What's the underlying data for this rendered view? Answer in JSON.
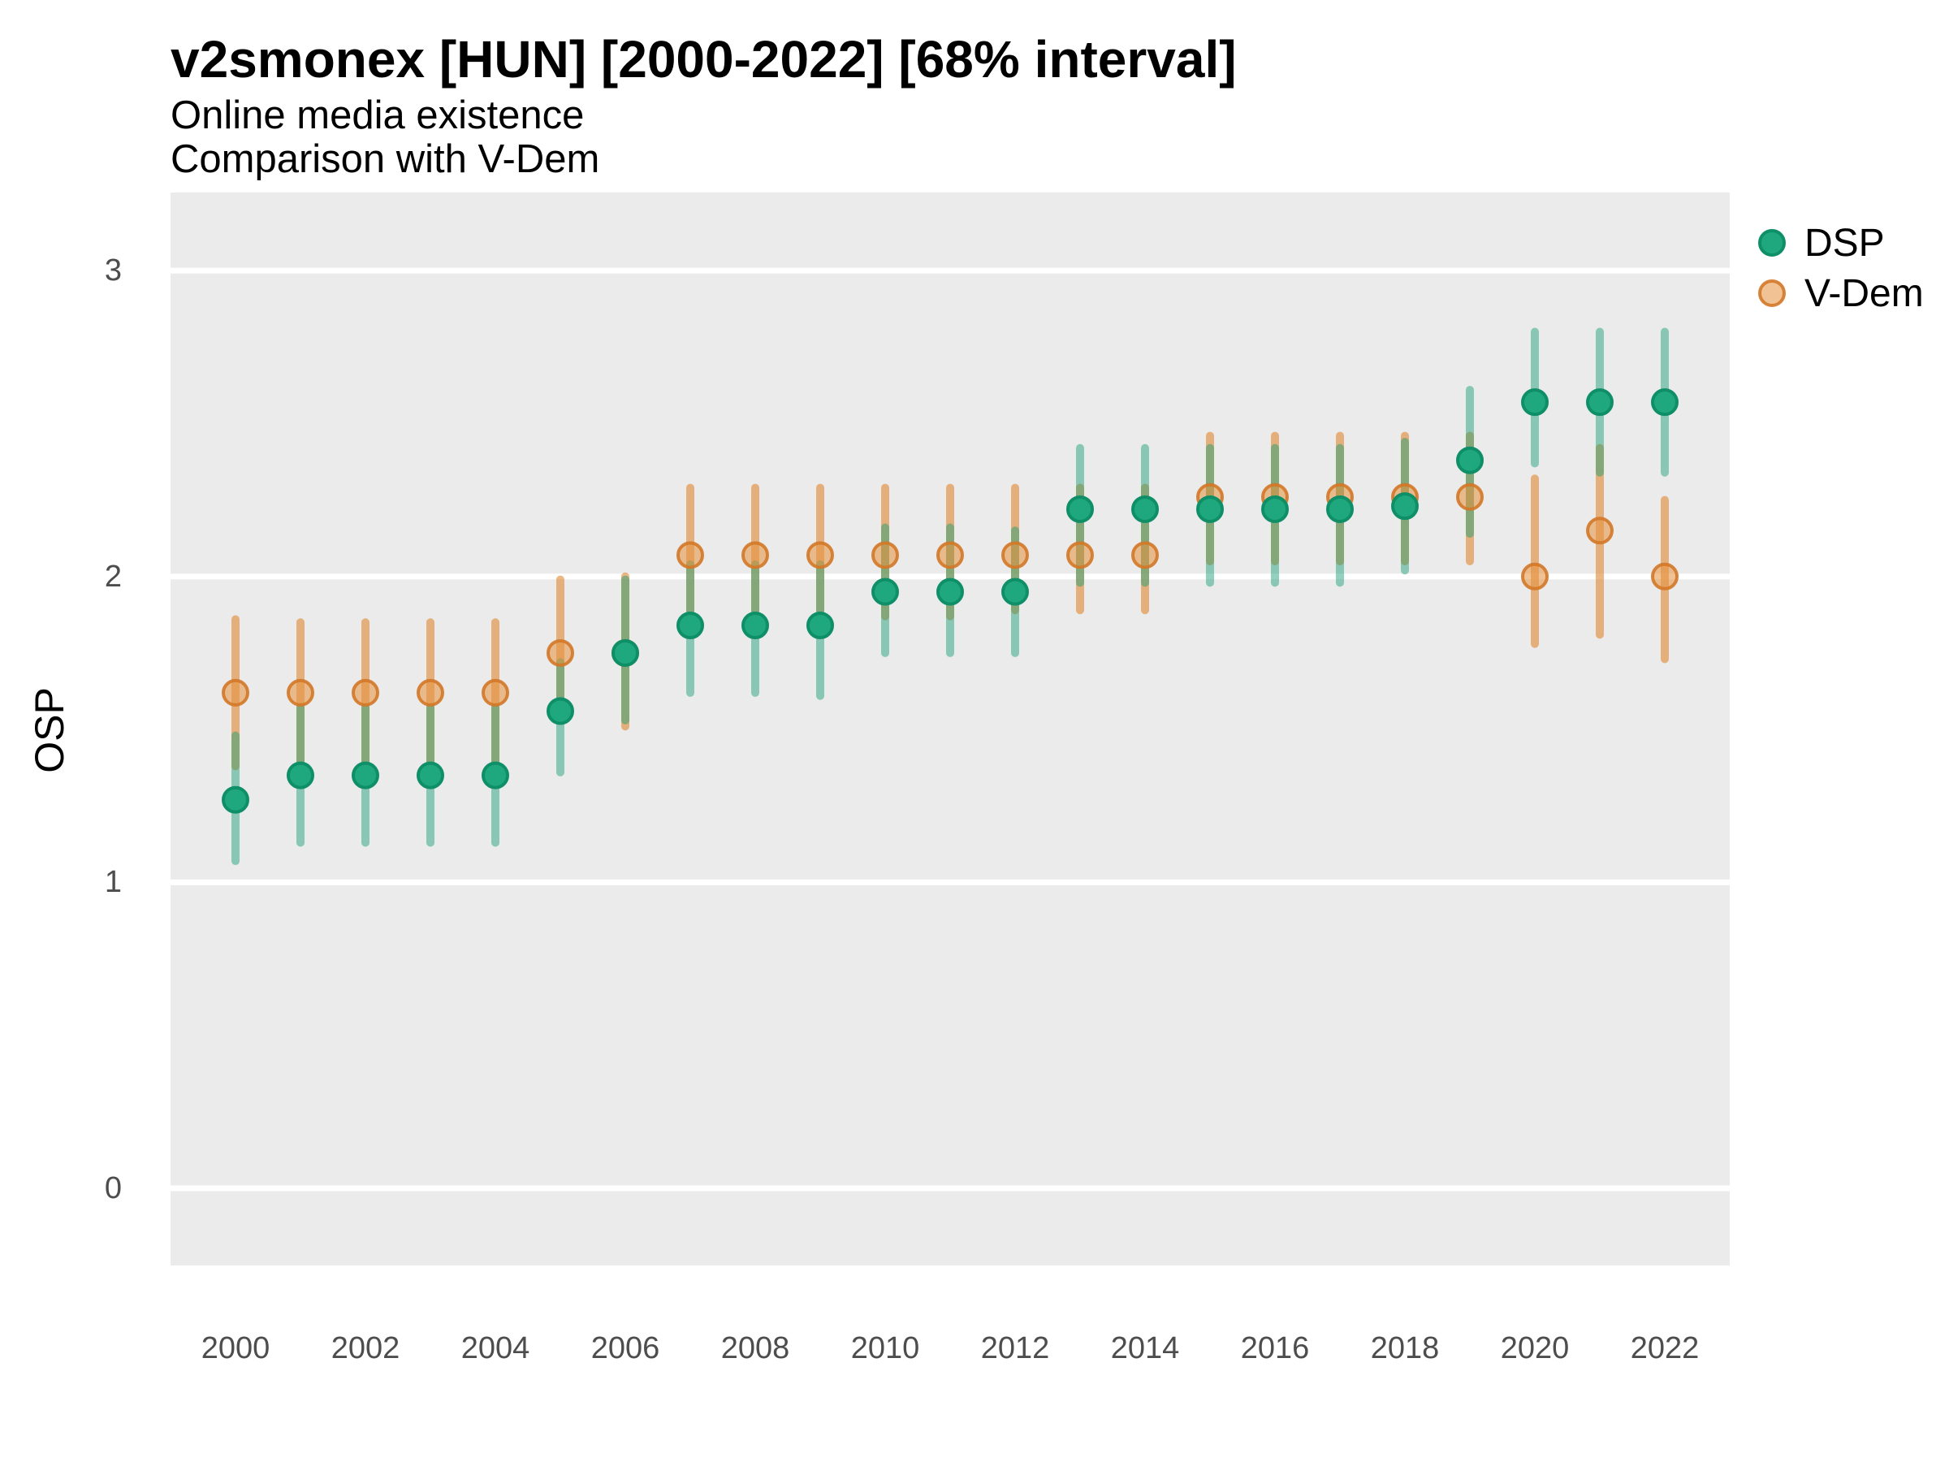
{
  "title": "v2smonex [HUN] [2000-2022] [68% interval]",
  "subtitle_line1": "Online media existence",
  "subtitle_line2": "Comparison with V-Dem",
  "y_axis": {
    "label": "OSP",
    "tick_labels": [
      "3",
      "2",
      "1",
      "0"
    ],
    "tick_values": [
      3,
      2,
      1,
      0
    ]
  },
  "x_axis": {
    "tick_labels": [
      "2000",
      "2002",
      "2004",
      "2006",
      "2008",
      "2010",
      "2012",
      "2014",
      "2016",
      "2018",
      "2020",
      "2022"
    ],
    "tick_years": [
      2000,
      2002,
      2004,
      2006,
      2008,
      2010,
      2012,
      2014,
      2016,
      2018,
      2020,
      2022
    ]
  },
  "legend": {
    "items": [
      {
        "label": "DSP",
        "series": "DSP"
      },
      {
        "label": "V-Dem",
        "series": "V-Dem"
      }
    ]
  },
  "colors": {
    "panel_background": "#EBEBEB",
    "gridline": "#FFFFFF",
    "dsp_dot_fill": "#1FA87E",
    "dsp_dot_stroke": "#0F8F68",
    "dsp_interval": "rgba(27,158,119,0.48)",
    "vdem_dot_fill": "rgba(230,145,60,0.55)",
    "vdem_dot_stroke": "rgba(211,120,40,0.9)",
    "vdem_interval": "rgba(224,138,53,0.62)"
  },
  "chart_data": {
    "type": "pointrange",
    "title": "v2smonex [HUN] [2000-2022] [68% interval]",
    "subtitle": [
      "Online media existence",
      "Comparison with V-Dem"
    ],
    "xlabel": "",
    "ylabel": "OSP",
    "interval": "68%",
    "ylim": [
      -0.25,
      3.26
    ],
    "y_gridlines": [
      0,
      1,
      2,
      3
    ],
    "grid": "white major gridlines on gray panel",
    "legend_position": "right",
    "x": [
      2000,
      2001,
      2002,
      2003,
      2004,
      2005,
      2006,
      2007,
      2008,
      2009,
      2010,
      2011,
      2012,
      2013,
      2014,
      2015,
      2016,
      2017,
      2018,
      2019,
      2020,
      2021,
      2022
    ],
    "series": [
      {
        "name": "DSP",
        "est": [
          1.27,
          1.35,
          1.35,
          1.35,
          1.35,
          1.56,
          1.75,
          1.84,
          1.84,
          1.84,
          1.95,
          1.95,
          1.95,
          2.22,
          2.22,
          2.22,
          2.22,
          2.22,
          2.23,
          2.38,
          2.57,
          2.57,
          2.57
        ],
        "lo": [
          1.07,
          1.13,
          1.13,
          1.13,
          1.13,
          1.36,
          1.53,
          1.62,
          1.62,
          1.61,
          1.75,
          1.75,
          1.75,
          1.98,
          1.98,
          1.98,
          1.98,
          1.98,
          2.02,
          2.14,
          2.37,
          2.34,
          2.34
        ],
        "hi": [
          1.48,
          1.57,
          1.57,
          1.57,
          1.57,
          1.72,
          1.99,
          2.04,
          2.04,
          2.04,
          2.16,
          2.16,
          2.15,
          2.42,
          2.42,
          2.42,
          2.42,
          2.42,
          2.44,
          2.61,
          2.8,
          2.8,
          2.8
        ]
      },
      {
        "name": "V-Dem",
        "est": [
          1.62,
          1.62,
          1.62,
          1.62,
          1.62,
          1.75,
          1.75,
          2.07,
          2.07,
          2.07,
          2.07,
          2.07,
          2.07,
          2.07,
          2.07,
          2.26,
          2.26,
          2.26,
          2.26,
          2.26,
          2.0,
          2.15,
          2.0
        ],
        "lo": [
          1.38,
          1.39,
          1.39,
          1.39,
          1.39,
          1.59,
          1.51,
          1.89,
          1.89,
          1.89,
          1.87,
          1.87,
          1.89,
          1.89,
          1.89,
          2.05,
          2.05,
          2.05,
          2.05,
          2.05,
          1.78,
          1.81,
          1.73
        ],
        "hi": [
          1.86,
          1.85,
          1.85,
          1.85,
          1.85,
          1.99,
          2.0,
          2.29,
          2.29,
          2.29,
          2.29,
          2.29,
          2.29,
          2.29,
          2.29,
          2.46,
          2.46,
          2.46,
          2.46,
          2.46,
          2.32,
          2.42,
          2.25
        ]
      }
    ]
  }
}
